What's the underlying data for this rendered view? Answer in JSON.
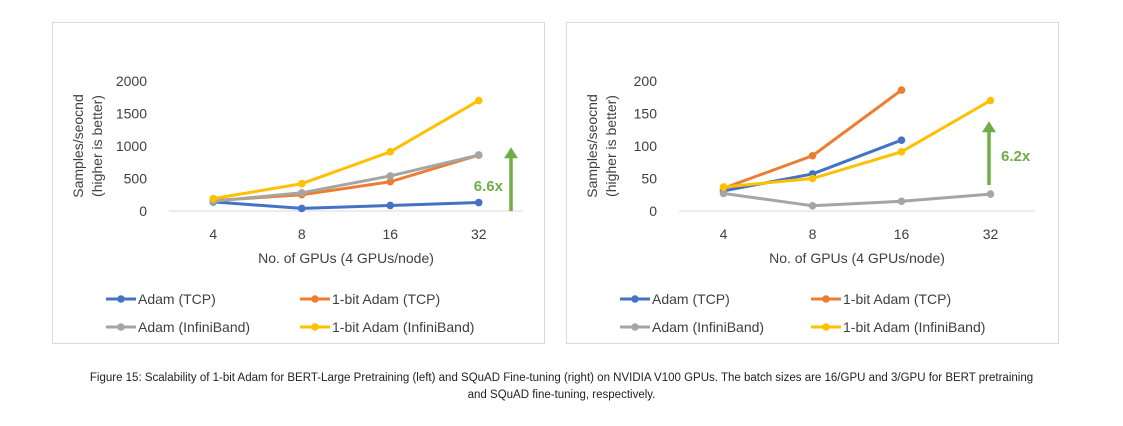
{
  "chart_data": [
    {
      "type": "line",
      "ylabel": "Samples/seocnd (higher is better)",
      "ylabel_lines": [
        "Samples/seocnd",
        "(higher is better)"
      ],
      "xlabel": "No. of GPUs (4 GPUs/node)",
      "categories": [
        "4",
        "8",
        "16",
        "32"
      ],
      "ylim": [
        0,
        2000
      ],
      "yticks": [
        "0",
        "500",
        "1000",
        "1500",
        "2000"
      ],
      "ytick_values": [
        0,
        500,
        1000,
        1500,
        2000
      ],
      "grid": false,
      "legend_position": "bottom",
      "series": [
        {
          "name": "Adam (TCP)",
          "color": "#4472c4",
          "values": [
            140,
            40,
            85,
            130
          ]
        },
        {
          "name": "1-bit Adam (TCP)",
          "color": "#ed7d31",
          "values": [
            160,
            250,
            450,
            860
          ]
        },
        {
          "name": "Adam (InfiniBand)",
          "color": "#a5a5a5",
          "values": [
            150,
            280,
            540,
            860
          ]
        },
        {
          "name": "1-bit Adam (InfiniBand)",
          "color": "#ffc000",
          "values": [
            190,
            420,
            910,
            1700
          ]
        }
      ],
      "annotation": {
        "label": "6.6x",
        "color": "#70ad47",
        "arrow_from": 0,
        "arrow_to": 980
      }
    },
    {
      "type": "line",
      "ylabel": "Samples/seocnd (higher is better)",
      "ylabel_lines": [
        "Samples/seocnd",
        "(higher is better)"
      ],
      "xlabel": "No. of GPUs (4 GPUs/node)",
      "categories": [
        "4",
        "8",
        "16",
        "32"
      ],
      "ylim": [
        0,
        200
      ],
      "yticks": [
        "0",
        "50",
        "100",
        "150",
        "200"
      ],
      "ytick_values": [
        0,
        50,
        100,
        150,
        200
      ],
      "grid": false,
      "legend_position": "bottom",
      "series": [
        {
          "name": "Adam (TCP)",
          "color": "#4472c4",
          "values": [
            31,
            57,
            109,
            null
          ]
        },
        {
          "name": "1-bit Adam (TCP)",
          "color": "#ed7d31",
          "values": [
            35,
            85,
            186,
            null
          ]
        },
        {
          "name": "Adam (InfiniBand)",
          "color": "#a5a5a5",
          "values": [
            27,
            8,
            15,
            26
          ]
        },
        {
          "name": "1-bit Adam (InfiniBand)",
          "color": "#ffc000",
          "values": [
            37,
            50,
            91,
            170
          ]
        }
      ],
      "annotation": {
        "label": "6.2x",
        "color": "#70ad47",
        "arrow_from": 40,
        "arrow_to": 138
      }
    }
  ],
  "caption": {
    "line1": "Figure 15: Scalability of 1-bit Adam for BERT-Large Pretraining (left) and SQuAD Fine-tuning (right) on NVIDIA V100 GPUs. The batch sizes are 16/GPU and 3/GPU for BERT pretraining",
    "line2": "and SQuAD fine-tuning, respectively."
  }
}
